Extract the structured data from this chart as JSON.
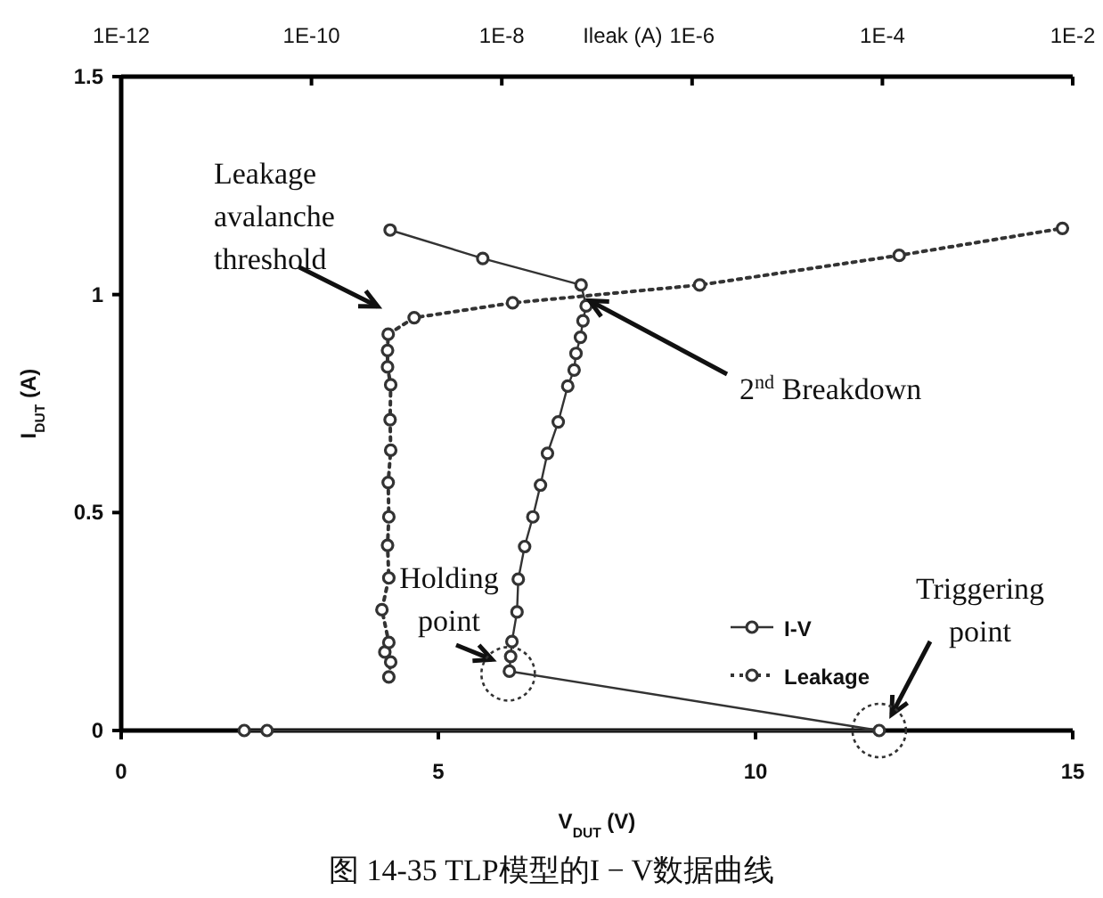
{
  "chart_data": {
    "type": "line",
    "xlabel": "V$_{DUT}$ (V)",
    "ylabel": "I$_{DUT}$ (A)",
    "x2label": "Ileak (A)",
    "xlim": [
      0,
      15
    ],
    "xticks": [
      0,
      5,
      10,
      15
    ],
    "ylim": [
      0,
      1.5
    ],
    "yticks": [
      0,
      0.5,
      1,
      1.5
    ],
    "x2lim": [
      1e-12,
      0.01
    ],
    "log": "x2",
    "x2ticks": [
      {
        "value": 1e-12,
        "label": "1E-12"
      },
      {
        "value": 1e-10,
        "label": "1E-10"
      },
      {
        "value": 1e-08,
        "label": "1E-8"
      },
      {
        "value": 1e-06,
        "label": "1E-6"
      },
      {
        "value": 0.0001,
        "label": "1E-4"
      },
      {
        "value": 0.01,
        "label": "1E-2"
      }
    ],
    "marker": "circle",
    "legend": "bottom right",
    "series": [
      {
        "name": "I-V",
        "color": "#333333",
        "line_style": "solid",
        "x": [
          1.94,
          2.3,
          11.95,
          6.12,
          6.14,
          6.16,
          6.24,
          6.26,
          6.36,
          6.49,
          6.61,
          6.72,
          6.89,
          7.04,
          7.14,
          7.17,
          7.24,
          7.28,
          7.33,
          7.25,
          5.7,
          4.24
        ],
        "values": [
          0,
          0,
          0,
          0.136,
          0.17,
          0.204,
          0.272,
          0.347,
          0.422,
          0.49,
          0.563,
          0.636,
          0.708,
          0.79,
          0.827,
          0.865,
          0.902,
          0.94,
          0.974,
          1.022,
          1.083,
          1.148
        ]
      },
      {
        "name": "Leakage",
        "color": "#333333",
        "line_style": "dotted",
        "axis": "x2",
        "x": [
          6.5e-10,
          6.8e-10,
          5.9e-10,
          6.5e-10,
          5.5e-10,
          6.5e-10,
          6.3e-10,
          6.5e-10,
          6.4e-10,
          6.8e-10,
          6.7e-10,
          6.8e-10,
          6.3e-10,
          6.3e-10,
          6.4e-10,
          1.2e-09,
          1.3e-08,
          1.2e-06,
          0.00015,
          0.0078
        ],
        "values": [
          0.123,
          0.157,
          0.18,
          0.202,
          0.277,
          0.35,
          0.425,
          0.49,
          0.569,
          0.643,
          0.713,
          0.793,
          0.834,
          0.872,
          0.909,
          0.947,
          0.981,
          1.022,
          1.09,
          1.152
        ]
      }
    ],
    "annotations": [
      "Leakage\navalanche\nthreshold",
      {
        "text": "2$^{nd}$ Breakdown",
        "x": 7.3,
        "y": 0.99
      },
      {
        "text": "Holding\npoint",
        "x": 6.1,
        "y": 0.13
      },
      {
        "text": "Triggering\npoint",
        "x": 11.95,
        "y": 0
      },
      "图 14-35 TLP模型的I − V数据曲线"
    ]
  }
}
